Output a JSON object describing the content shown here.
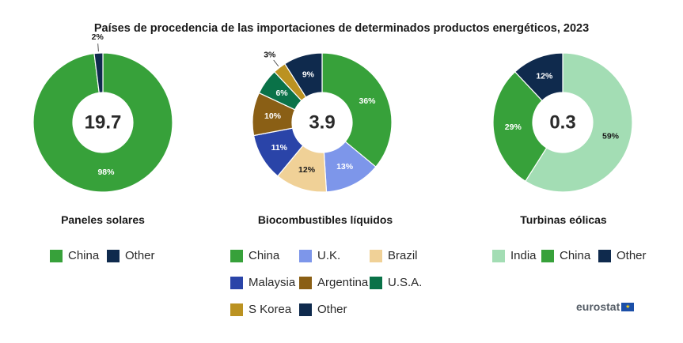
{
  "title": "Países de procedencia de las importaciones de determinados productos energéticos, 2023",
  "colors": {
    "India": "#a3ddb4",
    "China": "#37a13a",
    "U.K.": "#7d96ea",
    "Brazil": "#f0d197",
    "Malaysia": "#2a44a8",
    "Argentina": "#8a5f15",
    "U.S.A.": "#0a7248",
    "S Korea": "#bb9221",
    "Other": "#0f2a4d"
  },
  "chart_data": [
    {
      "type": "pie",
      "title": "Paneles solares",
      "center_label": "19.7",
      "slices": [
        {
          "name": "China",
          "value": 98,
          "label": "98%"
        },
        {
          "name": "Other",
          "value": 2,
          "label": "2%"
        }
      ],
      "legend": [
        "China",
        "Other"
      ]
    },
    {
      "type": "pie",
      "title": "Biocombustibles líquidos",
      "center_label": "3.9",
      "slices": [
        {
          "name": "China",
          "value": 36,
          "label": "36%"
        },
        {
          "name": "U.K.",
          "value": 13,
          "label": "13%"
        },
        {
          "name": "Brazil",
          "value": 12,
          "label": "12%"
        },
        {
          "name": "Malaysia",
          "value": 11,
          "label": "11%"
        },
        {
          "name": "Argentina",
          "value": 10,
          "label": "10%"
        },
        {
          "name": "U.S.A.",
          "value": 6,
          "label": "6%"
        },
        {
          "name": "S Korea",
          "value": 3,
          "label": "3%"
        },
        {
          "name": "Other",
          "value": 9,
          "label": "9%"
        }
      ],
      "legend": [
        "China",
        "U.K.",
        "Brazil",
        "Malaysia",
        "Argentina",
        "U.S.A.",
        "S Korea",
        "Other"
      ]
    },
    {
      "type": "pie",
      "title": "Turbinas eólicas",
      "center_label": "0.3",
      "slices": [
        {
          "name": "India",
          "value": 59,
          "label": "59%"
        },
        {
          "name": "China",
          "value": 29,
          "label": "29%"
        },
        {
          "name": "Other",
          "value": 12,
          "label": "12%"
        }
      ],
      "legend": [
        "India",
        "China",
        "Other"
      ]
    }
  ],
  "logo": {
    "text": "eurostat",
    "flag": "★"
  }
}
